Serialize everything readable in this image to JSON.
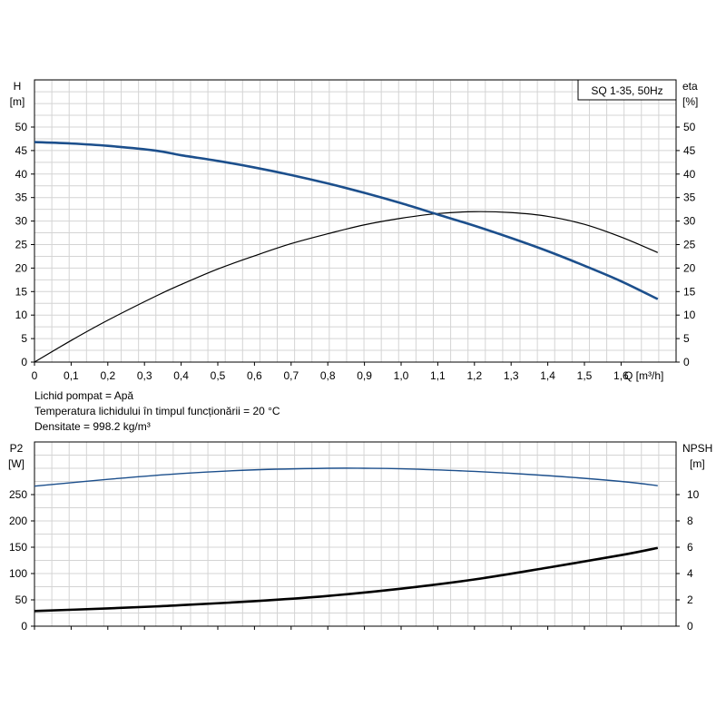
{
  "chart_data": [
    {
      "type": "line",
      "legend_box": "SQ 1-35, 50Hz",
      "xlabel": "Q [m³/h]",
      "xlim": [
        0,
        1.75
      ],
      "x_ticks": [
        "0",
        "0,1",
        "0,2",
        "0,3",
        "0,4",
        "0,5",
        "0,6",
        "0,7",
        "0,8",
        "0,9",
        "1,0",
        "1,1",
        "1,2",
        "1,3",
        "1,4",
        "1,5",
        "1,6"
      ],
      "y_left": {
        "label_line1": "H",
        "label_line2": "[m]",
        "ylim": [
          0,
          50
        ],
        "ticks": [
          "0",
          "5",
          "10",
          "15",
          "20",
          "25",
          "30",
          "35",
          "40",
          "45",
          "50"
        ]
      },
      "y_right": {
        "label_line1": "eta",
        "label_line2": "[%]",
        "ylim": [
          0,
          50
        ],
        "ticks": [
          "0",
          "5",
          "10",
          "15",
          "20",
          "25",
          "30",
          "35",
          "40",
          "45",
          "50"
        ]
      },
      "grid": true,
      "color_h": "#1c4f8c",
      "color_eta": "#000000",
      "series": [
        {
          "axis": "left",
          "x": [
            0,
            0.1,
            0.2,
            0.33,
            0.4,
            0.5,
            0.6,
            0.7,
            0.8,
            0.9,
            1.0,
            1.1,
            1.2,
            1.3,
            1.4,
            1.5,
            1.6,
            1.7
          ],
          "values": [
            46.8,
            46.5,
            46,
            45,
            44,
            42.8,
            41.4,
            39.8,
            38,
            36,
            33.8,
            31.4,
            29,
            26.4,
            23.6,
            20.5,
            17.2,
            13.4
          ]
        },
        {
          "axis": "right",
          "x": [
            0,
            0.1,
            0.2,
            0.33,
            0.4,
            0.5,
            0.6,
            0.7,
            0.8,
            0.9,
            1.0,
            1.1,
            1.2,
            1.3,
            1.4,
            1.5,
            1.6,
            1.7
          ],
          "values": [
            0,
            4.6,
            8.9,
            14,
            16.5,
            19.8,
            22.6,
            25.2,
            27.3,
            29.2,
            30.6,
            31.6,
            32,
            31.8,
            31,
            29.3,
            26.6,
            23.3
          ]
        }
      ]
    },
    {
      "type": "line",
      "xlim": [
        0,
        1.75
      ],
      "y_left": {
        "label_line1": "P2",
        "label_line2": "[W]",
        "ylim": [
          0,
          300
        ],
        "ticks": [
          "0",
          "50",
          "100",
          "150",
          "200",
          "250"
        ]
      },
      "y_right": {
        "label_line1": "NPSH",
        "label_line2": "[m]",
        "ylim": [
          0,
          12
        ],
        "ticks": [
          "0",
          "2",
          "4",
          "6",
          "8",
          "10"
        ]
      },
      "grid": true,
      "color_p2": "#1c4f8c",
      "color_npsh": "#000000",
      "series": [
        {
          "axis": "left",
          "x": [
            0,
            0.2,
            0.4,
            0.6,
            0.8,
            0.9,
            1.0,
            1.2,
            1.4,
            1.6,
            1.7
          ],
          "values": [
            266,
            279,
            290,
            297,
            300,
            300,
            299,
            294,
            286,
            275,
            267
          ]
        },
        {
          "axis": "right",
          "x": [
            0,
            0.2,
            0.33,
            0.4,
            0.6,
            0.8,
            1.0,
            1.2,
            1.4,
            1.6,
            1.7
          ],
          "values": [
            1.15,
            1.35,
            1.5,
            1.6,
            1.9,
            2.3,
            2.85,
            3.55,
            4.45,
            5.4,
            5.95
          ]
        }
      ]
    }
  ],
  "info": {
    "line1": "Lichid pompat = Apă",
    "line2": "Temperatura lichidului în timpul funcționării = 20 °C",
    "line3": "Densitate = 998.2 kg/m³"
  }
}
